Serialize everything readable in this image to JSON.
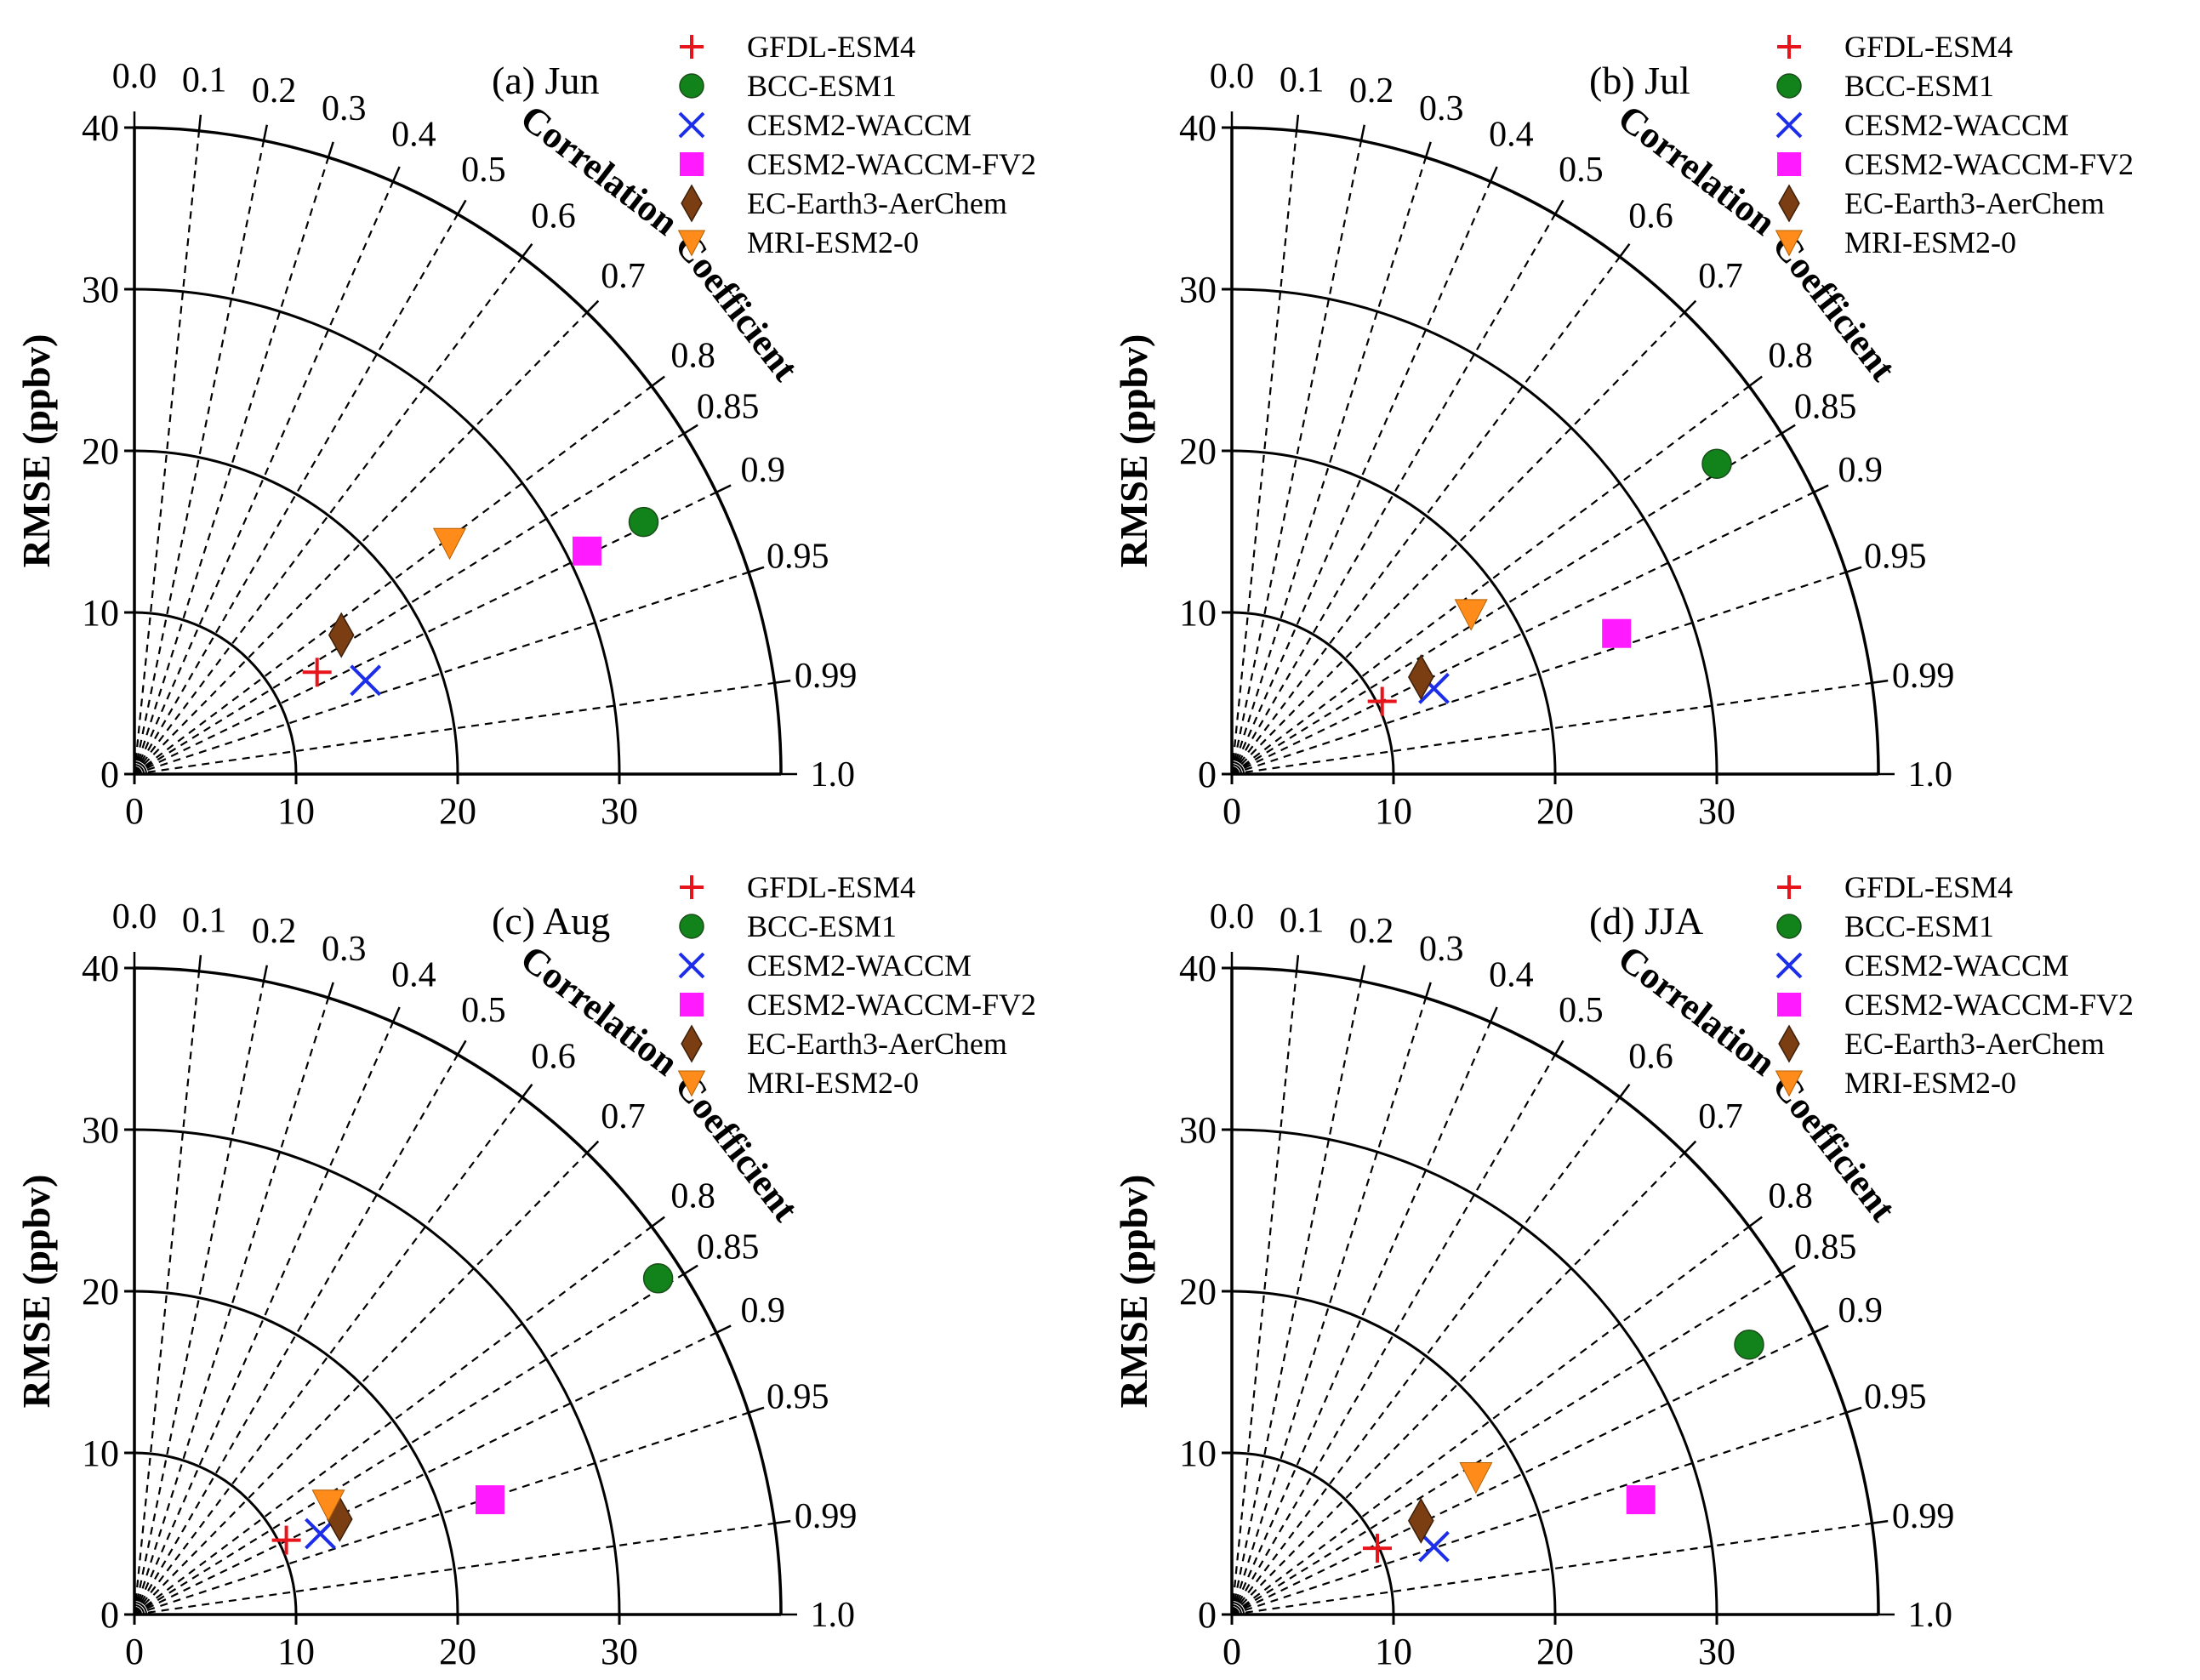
{
  "figure": {
    "panels_layout": "2x2 grid",
    "marker_legend": [
      {
        "name": "GFDL-ESM4",
        "marker": "plus",
        "color": "#e8141c"
      },
      {
        "name": "BCC-ESM1",
        "marker": "circle",
        "color": "#12821a"
      },
      {
        "name": "CESM2-WACCM",
        "marker": "x",
        "color": "#1c2ee8"
      },
      {
        "name": "CESM2-WACCM-FV2",
        "marker": "square",
        "color": "#ff1aff"
      },
      {
        "name": "EC-Earth3-AerChem",
        "marker": "diamond",
        "color": "#7a3e12"
      },
      {
        "name": "MRI-ESM2-0",
        "marker": "triangle-down",
        "color": "#ff8c1a"
      }
    ]
  },
  "chart_data": [
    {
      "type": "taylor",
      "title": "(a) Jun",
      "ylabel": "RMSE (ppbv)",
      "corr_axis_title": [
        "Correlation",
        "Coefficient"
      ],
      "radial_ticks": [
        0,
        10,
        20,
        30,
        40
      ],
      "x_tick_labels": [
        "0",
        "10",
        "20",
        "30"
      ],
      "y_tick_labels": [
        "0",
        "10",
        "20",
        "30",
        "40"
      ],
      "arcs": [
        10,
        20,
        30,
        40
      ],
      "correlation_ticks": [
        "0.0",
        "0.1",
        "0.2",
        "0.3",
        "0.4",
        "0.5",
        "0.6",
        "0.7",
        "0.8",
        "0.85",
        "0.9",
        "0.95",
        "0.99",
        "1.0"
      ],
      "correlation_values": [
        0.0,
        0.1,
        0.2,
        0.3,
        0.4,
        0.5,
        0.6,
        0.7,
        0.8,
        0.85,
        0.9,
        0.95,
        0.99,
        1.0
      ],
      "dashed_spokes": [
        0.0,
        0.1,
        0.2,
        0.3,
        0.4,
        0.5,
        0.6,
        0.7,
        0.8,
        0.85,
        0.9,
        0.95,
        0.99
      ],
      "legend": [
        "GFDL-ESM4",
        "BCC-ESM1",
        "CESM2-WACCM",
        "CESM2-WACCM-FV2",
        "EC-Earth3-AerChem",
        "MRI-ESM2-0"
      ],
      "points": [
        {
          "model": "GFDL-ESM4",
          "x": 11.3,
          "y": 6.3
        },
        {
          "model": "BCC-ESM1",
          "x": 31.5,
          "y": 15.6
        },
        {
          "model": "CESM2-WACCM",
          "x": 14.3,
          "y": 5.8
        },
        {
          "model": "CESM2-WACCM-FV2",
          "x": 28.0,
          "y": 13.8
        },
        {
          "model": "EC-Earth3-AerChem",
          "x": 12.8,
          "y": 8.6
        },
        {
          "model": "MRI-ESM2-0",
          "x": 19.5,
          "y": 14.3
        }
      ]
    },
    {
      "type": "taylor",
      "title": "(b) Jul",
      "ylabel": "RMSE (ppbv)",
      "corr_axis_title": [
        "Correlation",
        "Coefficient"
      ],
      "radial_ticks": [
        0,
        10,
        20,
        30,
        40
      ],
      "x_tick_labels": [
        "0",
        "10",
        "20",
        "30"
      ],
      "y_tick_labels": [
        "0",
        "10",
        "20",
        "30",
        "40"
      ],
      "arcs": [
        10,
        20,
        30,
        40
      ],
      "correlation_ticks": [
        "0.0",
        "0.1",
        "0.2",
        "0.3",
        "0.4",
        "0.5",
        "0.6",
        "0.7",
        "0.8",
        "0.85",
        "0.9",
        "0.95",
        "0.99",
        "1.0"
      ],
      "correlation_values": [
        0.0,
        0.1,
        0.2,
        0.3,
        0.4,
        0.5,
        0.6,
        0.7,
        0.8,
        0.85,
        0.9,
        0.95,
        0.99,
        1.0
      ],
      "dashed_spokes": [
        0.0,
        0.1,
        0.2,
        0.3,
        0.4,
        0.5,
        0.6,
        0.7,
        0.8,
        0.85,
        0.9,
        0.95,
        0.99
      ],
      "legend": [
        "GFDL-ESM4",
        "BCC-ESM1",
        "CESM2-WACCM",
        "CESM2-WACCM-FV2",
        "EC-Earth3-AerChem",
        "MRI-ESM2-0"
      ],
      "points": [
        {
          "model": "GFDL-ESM4",
          "x": 9.3,
          "y": 4.5
        },
        {
          "model": "BCC-ESM1",
          "x": 30.0,
          "y": 19.2
        },
        {
          "model": "CESM2-WACCM",
          "x": 12.5,
          "y": 5.3
        },
        {
          "model": "CESM2-WACCM-FV2",
          "x": 23.8,
          "y": 8.7
        },
        {
          "model": "EC-Earth3-AerChem",
          "x": 11.7,
          "y": 6.0
        },
        {
          "model": "MRI-ESM2-0",
          "x": 14.8,
          "y": 9.9
        }
      ]
    },
    {
      "type": "taylor",
      "title": "(c) Aug",
      "ylabel": "RMSE (ppbv)",
      "corr_axis_title": [
        "Correlation",
        "Coefficient"
      ],
      "radial_ticks": [
        0,
        10,
        20,
        30,
        40
      ],
      "x_tick_labels": [
        "0",
        "10",
        "20",
        "30"
      ],
      "y_tick_labels": [
        "0",
        "10",
        "20",
        "30",
        "40"
      ],
      "arcs": [
        10,
        20,
        30,
        40
      ],
      "correlation_ticks": [
        "0.0",
        "0.1",
        "0.2",
        "0.3",
        "0.4",
        "0.5",
        "0.6",
        "0.7",
        "0.8",
        "0.85",
        "0.9",
        "0.95",
        "0.99",
        "1.0"
      ],
      "correlation_values": [
        0.0,
        0.1,
        0.2,
        0.3,
        0.4,
        0.5,
        0.6,
        0.7,
        0.8,
        0.85,
        0.9,
        0.95,
        0.99,
        1.0
      ],
      "dashed_spokes": [
        0.0,
        0.1,
        0.2,
        0.3,
        0.4,
        0.5,
        0.6,
        0.7,
        0.8,
        0.85,
        0.9,
        0.95,
        0.99
      ],
      "legend": [
        "GFDL-ESM4",
        "BCC-ESM1",
        "CESM2-WACCM",
        "CESM2-WACCM-FV2",
        "EC-Earth3-AerChem",
        "MRI-ESM2-0"
      ],
      "points": [
        {
          "model": "GFDL-ESM4",
          "x": 9.4,
          "y": 4.6
        },
        {
          "model": "BCC-ESM1",
          "x": 32.4,
          "y": 20.8
        },
        {
          "model": "CESM2-WACCM",
          "x": 11.5,
          "y": 5.0
        },
        {
          "model": "CESM2-WACCM-FV2",
          "x": 22.0,
          "y": 7.1
        },
        {
          "model": "EC-Earth3-AerChem",
          "x": 12.7,
          "y": 5.9
        },
        {
          "model": "MRI-ESM2-0",
          "x": 12.0,
          "y": 6.8
        }
      ]
    },
    {
      "type": "taylor",
      "title": "(d) JJA",
      "ylabel": "RMSE (ppbv)",
      "corr_axis_title": [
        "Correlation",
        "Coefficient"
      ],
      "radial_ticks": [
        0,
        10,
        20,
        30,
        40
      ],
      "x_tick_labels": [
        "0",
        "10",
        "20",
        "30"
      ],
      "y_tick_labels": [
        "0",
        "10",
        "20",
        "30",
        "40"
      ],
      "arcs": [
        10,
        20,
        30,
        40
      ],
      "correlation_ticks": [
        "0.0",
        "0.1",
        "0.2",
        "0.3",
        "0.4",
        "0.5",
        "0.6",
        "0.7",
        "0.8",
        "0.85",
        "0.9",
        "0.95",
        "0.99",
        "1.0"
      ],
      "correlation_values": [
        0.0,
        0.1,
        0.2,
        0.3,
        0.4,
        0.5,
        0.6,
        0.7,
        0.8,
        0.85,
        0.9,
        0.95,
        0.99,
        1.0
      ],
      "dashed_spokes": [
        0.0,
        0.1,
        0.2,
        0.3,
        0.4,
        0.5,
        0.6,
        0.7,
        0.8,
        0.85,
        0.9,
        0.95,
        0.99
      ],
      "legend": [
        "GFDL-ESM4",
        "BCC-ESM1",
        "CESM2-WACCM",
        "CESM2-WACCM-FV2",
        "EC-Earth3-AerChem",
        "MRI-ESM2-0"
      ],
      "points": [
        {
          "model": "GFDL-ESM4",
          "x": 9.0,
          "y": 4.1
        },
        {
          "model": "BCC-ESM1",
          "x": 32.0,
          "y": 16.7
        },
        {
          "model": "CESM2-WACCM",
          "x": 12.5,
          "y": 4.2
        },
        {
          "model": "CESM2-WACCM-FV2",
          "x": 25.3,
          "y": 7.1
        },
        {
          "model": "EC-Earth3-AerChem",
          "x": 11.7,
          "y": 5.8
        },
        {
          "model": "MRI-ESM2-0",
          "x": 15.1,
          "y": 8.5
        }
      ]
    }
  ]
}
